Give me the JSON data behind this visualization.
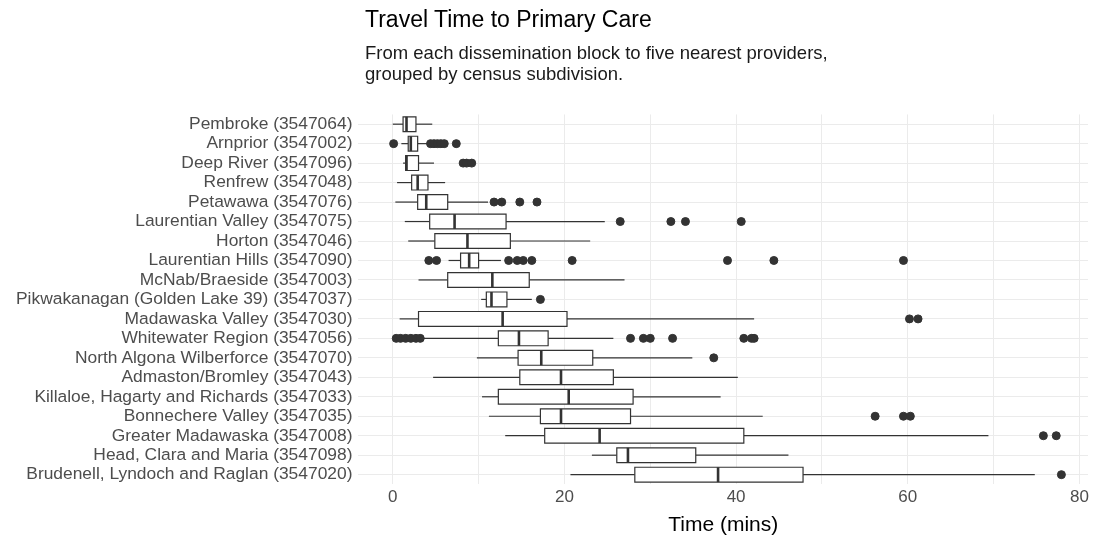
{
  "chart_data": {
    "type": "box",
    "orientation": "horizontal",
    "title": "Travel Time to Primary Care",
    "subtitle": "From each dissemination block to five nearest providers, grouped by census subdivision.",
    "xlabel": "Time (mins)",
    "categories": [
      "Pembroke (3547064)",
      "Arnprior (3547002)",
      "Deep River (3547096)",
      "Renfrew (3547048)",
      "Petawawa (3547076)",
      "Laurentian Valley (3547075)",
      "Horton (3547046)",
      "Laurentian Hills (3547090)",
      "McNab/Braeside (3547003)",
      "Pikwakanagan (Golden Lake 39) (3547037)",
      "Madawaska Valley (3547030)",
      "Whitewater Region (3547056)",
      "North Algona Wilberforce (3547070)",
      "Admaston/Bromley (3547043)",
      "Killaloe, Hagarty and Richards (3547033)",
      "Bonnechere Valley (3547035)",
      "Greater Madawaska (3547008)",
      "Head, Clara and Maria (3547098)",
      "Brudenell, Lyndoch and Raglan (3547020)"
    ],
    "boxes": [
      {
        "low": 0.0,
        "q1": 1.2,
        "median": 1.6,
        "q3": 2.7,
        "high": 4.6
      },
      {
        "low": 1.0,
        "q1": 1.8,
        "median": 2.1,
        "q3": 2.9,
        "high": 4.1,
        "outliers": [
          0.1,
          4.4,
          4.8,
          5.2,
          5.6,
          6.0,
          7.4
        ]
      },
      {
        "low": 1.2,
        "q1": 1.5,
        "median": 1.6,
        "q3": 3.0,
        "high": 4.8,
        "outliers": [
          8.2,
          8.6,
          9.2
        ]
      },
      {
        "low": 0.5,
        "q1": 2.2,
        "median": 2.9,
        "q3": 4.1,
        "high": 6.1
      },
      {
        "low": 0.3,
        "q1": 2.9,
        "median": 3.9,
        "q3": 6.4,
        "high": 11.1,
        "outliers": [
          11.8,
          12.7,
          14.8,
          16.8
        ]
      },
      {
        "low": 1.4,
        "q1": 4.3,
        "median": 7.2,
        "q3": 13.2,
        "high": 24.7,
        "outliers": [
          26.5,
          32.4,
          34.1,
          40.6
        ]
      },
      {
        "low": 1.8,
        "q1": 4.9,
        "median": 8.7,
        "q3": 13.7,
        "high": 23.0
      },
      {
        "low": 6.5,
        "q1": 7.9,
        "median": 8.9,
        "q3": 10.0,
        "high": 12.6,
        "outliers": [
          4.2,
          5.1,
          13.5,
          14.5,
          15.2,
          16.2,
          20.9,
          39.0,
          44.4,
          59.5
        ]
      },
      {
        "low": 3.0,
        "q1": 6.4,
        "median": 11.6,
        "q3": 15.9,
        "high": 27.0
      },
      {
        "low": 10.3,
        "q1": 10.9,
        "median": 11.5,
        "q3": 13.3,
        "high": 16.2,
        "outliers": [
          17.2
        ]
      },
      {
        "low": 0.8,
        "q1": 3.0,
        "median": 12.8,
        "q3": 20.3,
        "high": 42.1,
        "outliers": [
          60.2,
          61.2
        ]
      },
      {
        "low": 3.6,
        "q1": 12.3,
        "median": 14.7,
        "q3": 18.1,
        "high": 25.7,
        "outliers": [
          0.4,
          0.9,
          1.5,
          2.1,
          2.7,
          3.2,
          27.7,
          29.2,
          30.0,
          32.6,
          40.9,
          41.8,
          42.1
        ]
      },
      {
        "low": 9.8,
        "q1": 14.6,
        "median": 17.3,
        "q3": 23.3,
        "high": 34.9,
        "outliers": [
          37.4
        ]
      },
      {
        "low": 4.7,
        "q1": 14.8,
        "median": 19.6,
        "q3": 25.7,
        "high": 40.2
      },
      {
        "low": 10.4,
        "q1": 12.3,
        "median": 20.5,
        "q3": 28.0,
        "high": 38.2
      },
      {
        "low": 11.2,
        "q1": 17.2,
        "median": 19.6,
        "q3": 27.7,
        "high": 43.1,
        "outliers": [
          56.2,
          59.5,
          60.3
        ]
      },
      {
        "low": 13.1,
        "q1": 17.7,
        "median": 24.1,
        "q3": 40.9,
        "high": 69.4,
        "outliers": [
          75.8,
          77.3
        ]
      },
      {
        "low": 23.2,
        "q1": 26.1,
        "median": 27.4,
        "q3": 35.3,
        "high": 46.1
      },
      {
        "low": 20.7,
        "q1": 28.2,
        "median": 37.9,
        "q3": 47.8,
        "high": 74.8,
        "outliers": [
          77.9
        ]
      }
    ],
    "color": "#333333",
    "xlim": [
      -4,
      81
    ],
    "xticks": [
      0,
      {
        "value": 10,
        "label": null
      },
      20,
      {
        "value": 30,
        "label": null
      },
      40,
      {
        "value": 50,
        "label": null
      },
      60,
      {
        "value": 70,
        "label": null
      },
      80
    ],
    "grid": true,
    "legend": false
  }
}
